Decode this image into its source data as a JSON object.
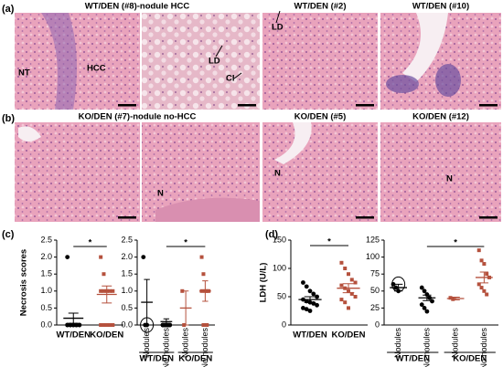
{
  "panels": [
    {
      "label": "(a)",
      "titles": [
        "WT/DEN (#8)-nodule HCC",
        "WT/DEN (#2)",
        "WT/DEN (#10)"
      ],
      "annotations": [
        "NT",
        "HCC",
        "LD",
        "CI",
        "LD"
      ]
    },
    {
      "label": "(b)",
      "titles": [
        "KO/DEN (#7)-nodule no-HCC",
        "KO/DEN (#5)",
        "KO/DEN (#12)"
      ],
      "annotations": [
        "N",
        "N",
        "N"
      ]
    },
    {
      "label": "(c)"
    },
    {
      "label": "(d)"
    }
  ],
  "chart_data": [
    {
      "type": "dotplot",
      "ylabel": "Necrosis scores",
      "categories": [
        "WT/DEN",
        "KO/DEN"
      ],
      "ylim": [
        0,
        2.5
      ],
      "yticks": [
        {
          "value": 0,
          "label": "0.0"
        },
        {
          "value": 0.5,
          "label": "0.5"
        },
        {
          "value": 1,
          "label": "1.0"
        },
        {
          "value": 1.5,
          "label": "1.5"
        },
        {
          "value": 2,
          "label": "2.0"
        },
        {
          "value": 2.5,
          "label": "2.5"
        }
      ],
      "colors": [
        "#000000",
        "#b5513d"
      ],
      "values": [
        [
          2,
          0,
          0,
          0,
          0,
          0,
          0,
          0,
          0,
          0,
          0,
          0,
          0,
          0
        ],
        [
          2,
          1.5,
          1,
          1,
          1,
          1,
          1,
          0,
          0,
          0,
          0,
          0,
          0
        ]
      ],
      "means": [
        0.2,
        0.9
      ],
      "errors": [
        0.15,
        0.25
      ],
      "significance": "*"
    },
    {
      "type": "dotplot",
      "categories": [
        "Nodules",
        "No nodules",
        "Nodules",
        "No nodules"
      ],
      "groups": [
        "WT/DEN",
        "KO/DEN"
      ],
      "ylim": [
        0,
        2.5
      ],
      "yticks": [
        {
          "value": 0,
          "label": "0.0"
        },
        {
          "value": 0.5,
          "label": "0.5"
        },
        {
          "value": 1,
          "label": "1.0"
        },
        {
          "value": 1.5,
          "label": "1.5"
        },
        {
          "value": 2,
          "label": "2.0"
        },
        {
          "value": 2.5,
          "label": "2.5"
        }
      ],
      "colors": [
        "#000000",
        "#000000",
        "#b5513d",
        "#b5513d"
      ],
      "values": [
        [
          2,
          0,
          0
        ],
        [
          0,
          0,
          0,
          0,
          0,
          0,
          0,
          0,
          0,
          0,
          0
        ],
        [
          1,
          0
        ],
        [
          2,
          1.5,
          1,
          1,
          1,
          1,
          0,
          0,
          0
        ]
      ],
      "means": [
        0.67,
        0.1,
        0.5,
        1
      ],
      "errors": [
        0.67,
        0.08,
        0.5,
        0.3
      ],
      "significance": "*"
    },
    {
      "type": "dotplot",
      "ylabel": "LDH (U/L)",
      "categories": [
        "WT/DEN",
        "KO/DEN"
      ],
      "ylim": [
        0,
        150
      ],
      "yticks": [
        0,
        50,
        100,
        150
      ],
      "colors": [
        "#000000",
        "#b5513d"
      ],
      "values": [
        [
          75,
          68,
          60,
          55,
          50,
          45,
          42,
          40,
          38,
          35,
          30,
          28,
          25
        ],
        [
          110,
          100,
          90,
          80,
          75,
          70,
          65,
          60,
          55,
          50,
          45,
          40,
          30
        ]
      ],
      "means": [
        45,
        65
      ],
      "errors": [
        5,
        8
      ],
      "significance": "*"
    },
    {
      "type": "dotplot",
      "categories": [
        "Nodules",
        "No nodules",
        "Nodules",
        "No nodules"
      ],
      "groups": [
        "WT/DEN",
        "KO/DEN"
      ],
      "ylim": [
        0,
        125
      ],
      "yticks": [
        0,
        25,
        50,
        75,
        100,
        125
      ],
      "colors": [
        "#000000",
        "#000000",
        "#b5513d",
        "#b5513d"
      ],
      "values": [
        [
          60,
          55,
          50
        ],
        [
          55,
          50,
          45,
          40,
          35,
          30,
          25,
          20
        ],
        [
          40,
          38
        ],
        [
          110,
          95,
          90,
          75,
          70,
          60,
          55,
          50,
          45
        ]
      ],
      "means": [
        55,
        40,
        39,
        70
      ],
      "errors": [
        5,
        4,
        2,
        8
      ],
      "significance": "*"
    }
  ]
}
